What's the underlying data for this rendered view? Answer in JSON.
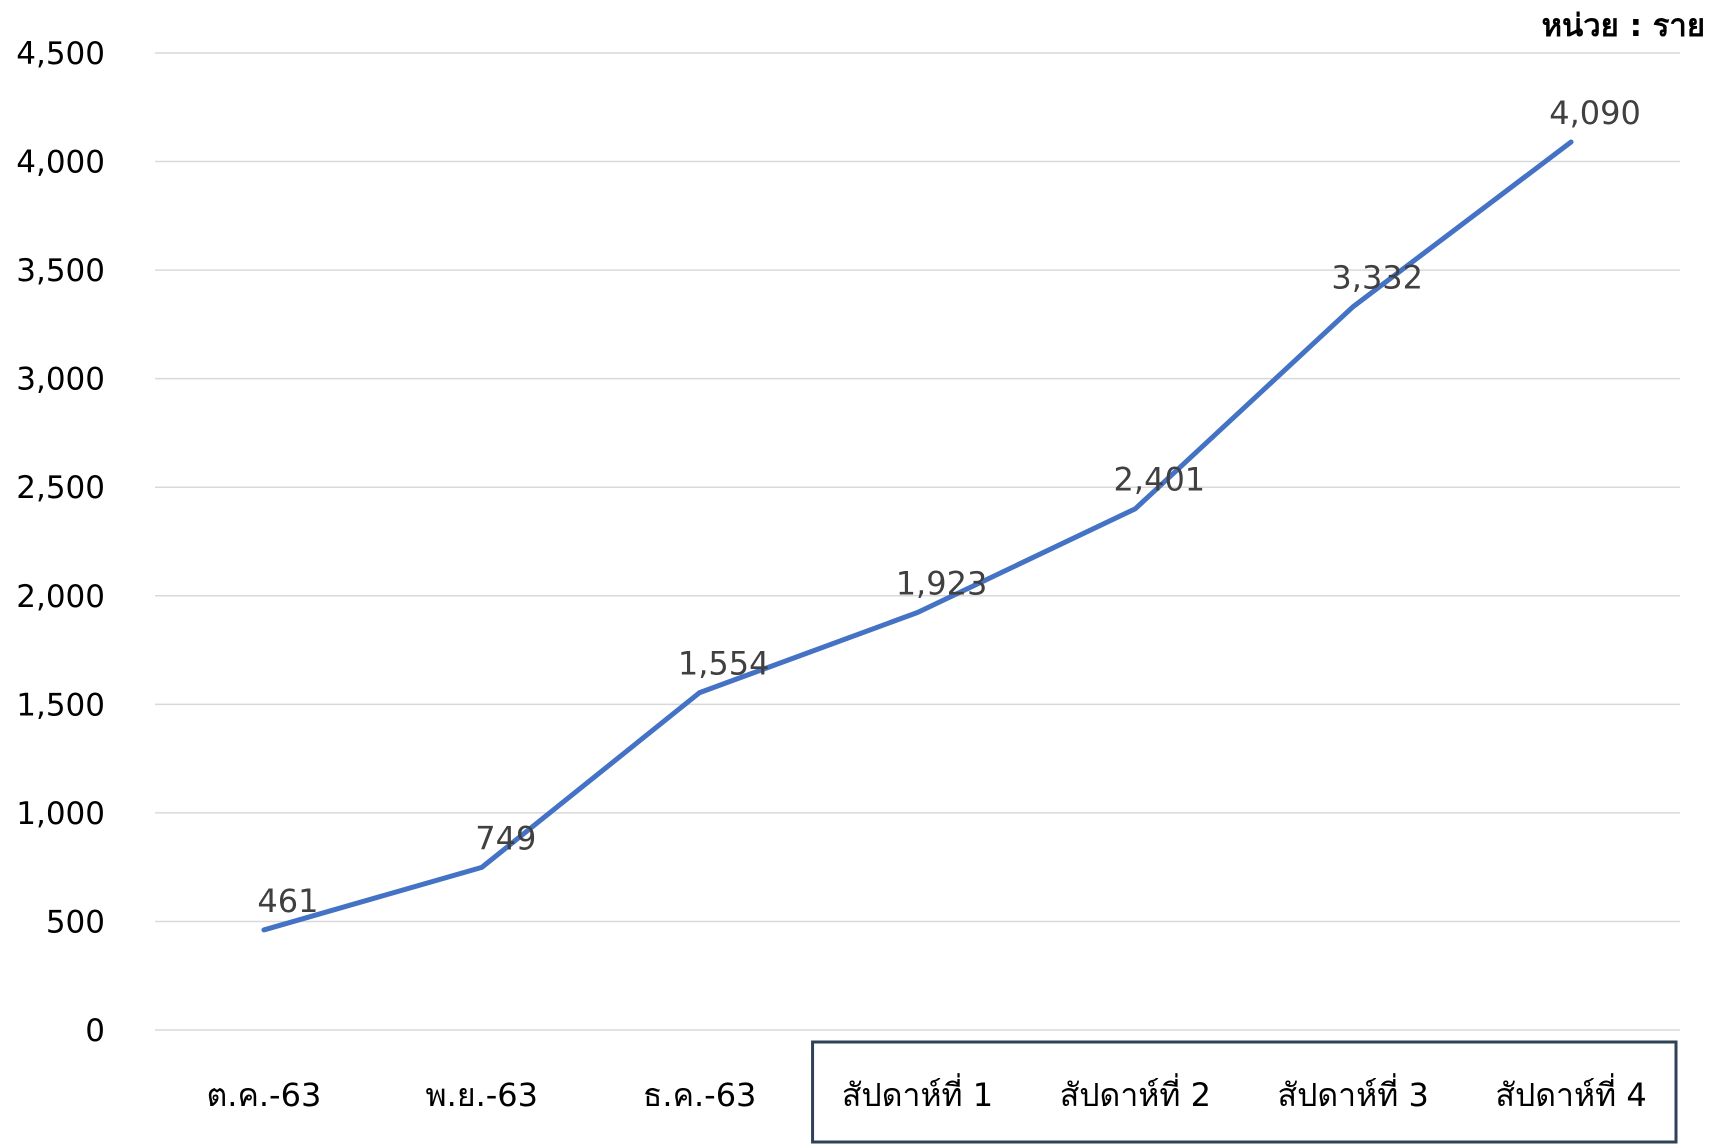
{
  "chart_data": {
    "type": "line",
    "unit_label": "หน่วย : ราย",
    "categories": [
      "ต.ค.-63",
      "พ.ย.-63",
      "ธ.ค.-63",
      "สัปดาห์ที่ 1",
      "สัปดาห์ที่ 2",
      "สัปดาห์ที่ 3",
      "สัปดาห์ที่ 4"
    ],
    "series": [
      {
        "values": [
          461,
          749,
          1554,
          1923,
          2401,
          3332,
          4090
        ],
        "color": "#4472c4"
      }
    ],
    "data_labels": [
      "461",
      "749",
      "1,554",
      "1,923",
      "2,401",
      "3,332",
      "4,090"
    ],
    "y_ticks": [
      0,
      500,
      1000,
      1500,
      2000,
      2500,
      3000,
      3500,
      4000,
      4500
    ],
    "y_tick_labels": [
      "0",
      "500",
      "1,000",
      "1,500",
      "2,000",
      "2,500",
      "3,000",
      "3,500",
      "4,000",
      "4,500"
    ],
    "ylim": [
      0,
      4500
    ],
    "grid": true,
    "highlight_box": {
      "from_category": 3,
      "to_category": 6,
      "color": "#2e4156"
    },
    "title": "",
    "xlabel": "",
    "ylabel": ""
  }
}
